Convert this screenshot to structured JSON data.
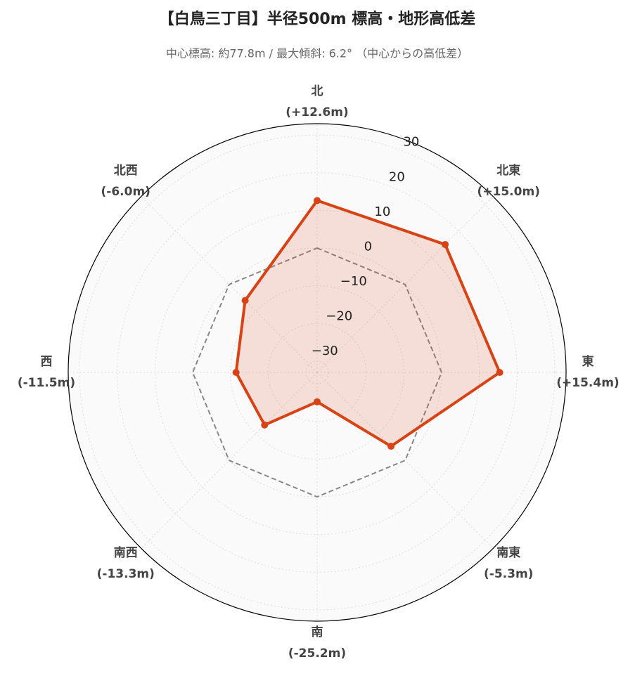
{
  "chart_data": {
    "type": "radar",
    "title": "【白鳥三丁目】半径500m 標高・地形高低差",
    "subtitle": "中心標高: 約77.8m / 最大傾斜: 6.2° （中心からの高低差）",
    "categories": [
      "北",
      "北東",
      "東",
      "南東",
      "南",
      "南西",
      "西",
      "北西"
    ],
    "series": [
      {
        "color": "#d84315",
        "values": [
          12.6,
          15.0,
          15.4,
          -5.3,
          -25.2,
          -13.3,
          -11.5,
          -6.0
        ],
        "value_labels": [
          "(+12.6m)",
          "(+15.0m)",
          "(+15.4m)",
          "(-5.3m)",
          "(-25.2m)",
          "(-13.3m)",
          "(-11.5m)",
          "(-6.0m)"
        ]
      }
    ],
    "reference_line": {
      "value": 0,
      "color": "#888888"
    },
    "ylim": [
      -33,
      33
    ],
    "yticks": [
      {
        "value": -30,
        "label": "−30"
      },
      {
        "value": -20,
        "label": "−20"
      },
      {
        "value": -10,
        "label": "−10"
      },
      0,
      10,
      20,
      30
    ],
    "grid": true
  }
}
